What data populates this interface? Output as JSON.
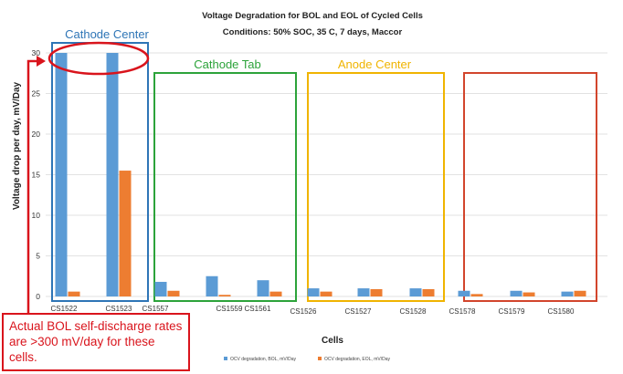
{
  "colors": {
    "bol": "#5b9bd5",
    "eol": "#ed7d31",
    "cathode_center": "#2e75b6",
    "cathode_tab": "#2ca33a",
    "anode_center": "#f0b400",
    "fourth_group": "#d2452c",
    "callout": "#d9141c"
  },
  "chart_data": {
    "type": "bar",
    "title": "Voltage Degradation for BOL and EOL of Cycled Cells",
    "subtitle": "Conditions: 50% SOC, 35 C, 7 days, Maccor",
    "xlabel": "Cells",
    "ylabel": "Voltage drop per day, mV/Day",
    "ylim": [
      0,
      30
    ],
    "yticks": [
      0,
      5,
      10,
      15,
      20,
      25,
      30
    ],
    "grid": true,
    "legend_position": "bottom",
    "categories": [
      "CS1522",
      "CS1523",
      "CS1557",
      "CS1559",
      "CS1561",
      "CS1526",
      "CS1527",
      "CS1528",
      "CS1578",
      "CS1579",
      "CS1580"
    ],
    "series": [
      {
        "name": "OCV degradation, BOL, mV/Day",
        "values": [
          30,
          30,
          1.8,
          2.5,
          2.0,
          1.0,
          1.0,
          1.0,
          0.7,
          0.7,
          0.6
        ]
      },
      {
        "name": "OCV degradation, EOL, mV/Day",
        "values": [
          0.6,
          15.5,
          0.7,
          0.2,
          0.6,
          0.6,
          0.9,
          0.9,
          0.3,
          0.5,
          0.7
        ]
      }
    ],
    "groups": [
      {
        "label": "Cathode Center",
        "members": [
          "CS1522",
          "CS1523"
        ]
      },
      {
        "label": "Cathode Tab",
        "members": [
          "CS1557",
          "CS1559",
          "CS1561"
        ]
      },
      {
        "label": "Anode Center",
        "members": [
          "CS1526",
          "CS1527",
          "CS1528"
        ]
      },
      {
        "label": "",
        "members": [
          "CS1578",
          "CS1579",
          "CS1580"
        ]
      }
    ],
    "annotation": "Actual BOL self-discharge rates are >300 mV/day for these cells."
  }
}
